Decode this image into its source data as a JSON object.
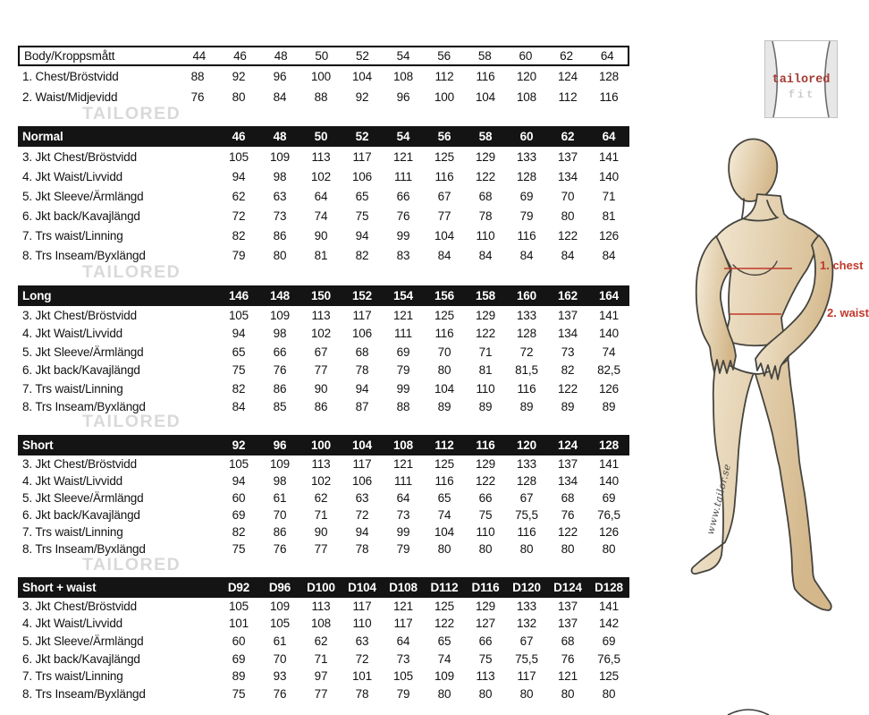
{
  "logo": {
    "line1": "tailored",
    "line2": "fit"
  },
  "watermark": {
    "text": "TAILORED"
  },
  "figure": {
    "chest_label": "1. chest",
    "waist_label": "2. waist",
    "website": "www.tailor.se"
  },
  "tables": [
    {
      "id": "body",
      "header_label": "Body/Kroppsmått",
      "columns": [
        "44",
        "46",
        "48",
        "50",
        "52",
        "54",
        "56",
        "58",
        "60",
        "62",
        "64"
      ],
      "rows": [
        {
          "label": "1. Chest/Bröstvidd",
          "values": [
            "88",
            "92",
            "96",
            "100",
            "104",
            "108",
            "112",
            "116",
            "120",
            "124",
            "128"
          ]
        },
        {
          "label": "2. Waist/Midjevidd",
          "values": [
            "76",
            "80",
            "84",
            "88",
            "92",
            "96",
            "100",
            "104",
            "108",
            "112",
            "116"
          ]
        }
      ]
    },
    {
      "id": "normal",
      "header_label": "Normal",
      "columns": [
        "46",
        "48",
        "50",
        "52",
        "54",
        "56",
        "58",
        "60",
        "62",
        "64"
      ],
      "rows": [
        {
          "label": "3. Jkt Chest/Bröstvidd",
          "values": [
            "105",
            "109",
            "113",
            "117",
            "121",
            "125",
            "129",
            "133",
            "137",
            "141"
          ]
        },
        {
          "label": "4. Jkt Waist/Livvidd",
          "values": [
            "94",
            "98",
            "102",
            "106",
            "111",
            "116",
            "122",
            "128",
            "134",
            "140"
          ]
        },
        {
          "label": "5. Jkt Sleeve/Ärmlängd",
          "values": [
            "62",
            "63",
            "64",
            "65",
            "66",
            "67",
            "68",
            "69",
            "70",
            "71"
          ]
        },
        {
          "label": "6. Jkt back/Kavajlängd",
          "values": [
            "72",
            "73",
            "74",
            "75",
            "76",
            "77",
            "78",
            "79",
            "80",
            "81"
          ]
        },
        {
          "label": "7. Trs waist/Linning",
          "values": [
            "82",
            "86",
            "90",
            "94",
            "99",
            "104",
            "110",
            "116",
            "122",
            "126"
          ]
        },
        {
          "label": "8. Trs Inseam/Byxlängd",
          "values": [
            "79",
            "80",
            "81",
            "82",
            "83",
            "84",
            "84",
            "84",
            "84",
            "84"
          ]
        }
      ]
    },
    {
      "id": "long",
      "header_label": "Long",
      "columns": [
        "146",
        "148",
        "150",
        "152",
        "154",
        "156",
        "158",
        "160",
        "162",
        "164"
      ],
      "rows": [
        {
          "label": "3. Jkt Chest/Bröstvidd",
          "values": [
            "105",
            "109",
            "113",
            "117",
            "121",
            "125",
            "129",
            "133",
            "137",
            "141"
          ]
        },
        {
          "label": "4. Jkt Waist/Livvidd",
          "values": [
            "94",
            "98",
            "102",
            "106",
            "111",
            "116",
            "122",
            "128",
            "134",
            "140"
          ]
        },
        {
          "label": "5. Jkt Sleeve/Ärmlängd",
          "values": [
            "65",
            "66",
            "67",
            "68",
            "69",
            "70",
            "71",
            "72",
            "73",
            "74"
          ]
        },
        {
          "label": "6. Jkt back/Kavajlängd",
          "values": [
            "75",
            "76",
            "77",
            "78",
            "79",
            "80",
            "81",
            "81,5",
            "82",
            "82,5"
          ]
        },
        {
          "label": "7. Trs waist/Linning",
          "values": [
            "82",
            "86",
            "90",
            "94",
            "99",
            "104",
            "110",
            "116",
            "122",
            "126"
          ]
        },
        {
          "label": "8. Trs Inseam/Byxlängd",
          "values": [
            "84",
            "85",
            "86",
            "87",
            "88",
            "89",
            "89",
            "89",
            "89",
            "89"
          ]
        }
      ]
    },
    {
      "id": "short",
      "header_label": "Short",
      "columns": [
        "92",
        "96",
        "100",
        "104",
        "108",
        "112",
        "116",
        "120",
        "124",
        "128"
      ],
      "rows": [
        {
          "label": "3. Jkt Chest/Bröstvidd",
          "values": [
            "105",
            "109",
            "113",
            "117",
            "121",
            "125",
            "129",
            "133",
            "137",
            "141"
          ]
        },
        {
          "label": "4. Jkt Waist/Livvidd",
          "values": [
            "94",
            "98",
            "102",
            "106",
            "111",
            "116",
            "122",
            "128",
            "134",
            "140"
          ]
        },
        {
          "label": "5. Jkt Sleeve/Ärmlängd",
          "values": [
            "60",
            "61",
            "62",
            "63",
            "64",
            "65",
            "66",
            "67",
            "68",
            "69"
          ]
        },
        {
          "label": "6. Jkt back/Kavajlängd",
          "values": [
            "69",
            "70",
            "71",
            "72",
            "73",
            "74",
            "75",
            "75,5",
            "76",
            "76,5"
          ]
        },
        {
          "label": "7. Trs waist/Linning",
          "values": [
            "82",
            "86",
            "90",
            "94",
            "99",
            "104",
            "110",
            "116",
            "122",
            "126"
          ]
        },
        {
          "label": "8. Trs Inseam/Byxlängd",
          "values": [
            "75",
            "76",
            "77",
            "78",
            "79",
            "80",
            "80",
            "80",
            "80",
            "80"
          ]
        }
      ]
    },
    {
      "id": "short-waist",
      "header_label": "Short + waist",
      "columns": [
        "D92",
        "D96",
        "D100",
        "D104",
        "D108",
        "D112",
        "D116",
        "D120",
        "D124",
        "D128"
      ],
      "rows": [
        {
          "label": "3. Jkt Chest/Bröstvidd",
          "values": [
            "105",
            "109",
            "113",
            "117",
            "121",
            "125",
            "129",
            "133",
            "137",
            "141"
          ]
        },
        {
          "label": "4. Jkt Waist/Livvidd",
          "values": [
            "101",
            "105",
            "108",
            "110",
            "117",
            "122",
            "127",
            "132",
            "137",
            "142"
          ]
        },
        {
          "label": "5. Jkt Sleeve/Ärmlängd",
          "values": [
            "60",
            "61",
            "62",
            "63",
            "64",
            "65",
            "66",
            "67",
            "68",
            "69"
          ]
        },
        {
          "label": "6. Jkt back/Kavajlängd",
          "values": [
            "69",
            "70",
            "71",
            "72",
            "73",
            "74",
            "75",
            "75,5",
            "76",
            "76,5"
          ]
        },
        {
          "label": "7. Trs waist/Linning",
          "values": [
            "89",
            "93",
            "97",
            "101",
            "105",
            "109",
            "113",
            "117",
            "121",
            "125"
          ]
        },
        {
          "label": "8. Trs Inseam/Byxlängd",
          "values": [
            "75",
            "76",
            "77",
            "78",
            "79",
            "80",
            "80",
            "80",
            "80",
            "80"
          ]
        }
      ]
    }
  ],
  "colors": {
    "header_bar": "#141414",
    "accent_red": "#c0392b",
    "logo_red": "#a33b32",
    "watermark_gray": "#d9d9d9",
    "skin_light": "#f6eedb",
    "skin_dark": "#d4b88c"
  }
}
